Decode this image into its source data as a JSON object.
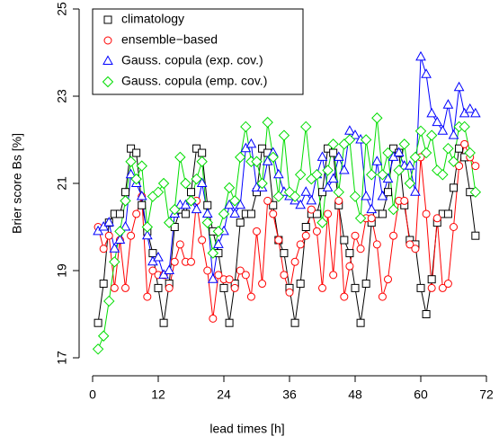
{
  "chart_data": {
    "type": "line",
    "x_label": "lead times [h]",
    "y_label": "Brier score Bs [%]",
    "x": [
      1,
      2,
      3,
      4,
      5,
      6,
      7,
      8,
      9,
      10,
      11,
      12,
      13,
      14,
      15,
      16,
      17,
      18,
      19,
      20,
      21,
      22,
      23,
      24,
      25,
      26,
      27,
      28,
      29,
      30,
      31,
      32,
      33,
      34,
      35,
      36,
      37,
      38,
      39,
      40,
      41,
      42,
      43,
      44,
      45,
      46,
      47,
      48,
      49,
      50,
      51,
      52,
      53,
      54,
      55,
      56,
      57,
      58,
      59,
      60,
      61,
      62,
      63,
      64,
      65,
      66,
      67,
      68,
      69,
      70
    ],
    "xlim": [
      0,
      72
    ],
    "xticks": [
      0,
      12,
      24,
      36,
      48,
      60,
      72
    ],
    "ylim": [
      17,
      25
    ],
    "yticks": [
      17,
      19,
      21,
      23,
      25
    ],
    "legend": "topleft",
    "series": [
      {
        "name": "climatology",
        "color": "#000000",
        "marker": "square",
        "values": [
          17.8,
          18.7,
          20.1,
          20.3,
          20.3,
          20.8,
          21.8,
          21.7,
          20.5,
          19.9,
          19.4,
          18.6,
          17.8,
          18.7,
          20.0,
          20.4,
          20.3,
          20.8,
          21.8,
          21.7,
          20.5,
          19.9,
          19.4,
          18.6,
          17.8,
          18.7,
          20.1,
          20.3,
          20.3,
          20.8,
          21.8,
          21.7,
          20.5,
          19.7,
          19.4,
          18.6,
          17.8,
          18.7,
          20.0,
          20.3,
          20.3,
          20.8,
          21.8,
          21.7,
          20.5,
          19.7,
          19.4,
          18.6,
          17.8,
          18.7,
          20.1,
          20.3,
          20.3,
          20.8,
          21.8,
          21.7,
          20.5,
          19.7,
          19.6,
          18.6,
          18.0,
          18.8,
          20.1,
          20.3,
          20.3,
          20.9,
          21.8,
          21.6,
          20.8,
          19.8
        ]
      },
      {
        "name": "ensemble−based",
        "color": "#ff0000",
        "marker": "circle",
        "values": [
          20.0,
          19.5,
          19.8,
          18.6,
          19.7,
          18.6,
          19.8,
          20.3,
          20.7,
          18.4,
          19.0,
          18.9,
          18.9,
          18.6,
          19.2,
          19.6,
          19.2,
          19.2,
          20.6,
          19.7,
          19.0,
          17.9,
          18.9,
          18.8,
          18.8,
          18.6,
          19.0,
          18.9,
          18.4,
          19.9,
          18.7,
          20.6,
          20.3,
          19.7,
          18.9,
          18.5,
          19.2,
          19.6,
          19.8,
          20.4,
          19.9,
          18.6,
          20.3,
          18.9,
          20.6,
          18.4,
          19.1,
          19.8,
          19.5,
          20.2,
          20.2,
          19.6,
          18.4,
          18.8,
          19.8,
          20.6,
          20.6,
          19.6,
          19.5,
          21.6,
          20.3,
          18.6,
          20.2,
          18.6,
          18.7,
          20.0,
          21.4,
          21.9,
          21.6,
          21.4
        ]
      },
      {
        "name": "Gauss. copula (exp. cov.)",
        "color": "#0000ff",
        "marker": "triangle",
        "values": [
          19.9,
          20.0,
          20.1,
          19.5,
          19.7,
          20.0,
          21.2,
          21.0,
          20.7,
          19.8,
          19.2,
          19.3,
          18.9,
          19.0,
          20.3,
          20.5,
          20.5,
          20.6,
          20.4,
          21.0,
          20.3,
          18.8,
          19.6,
          19.9,
          20.5,
          20.3,
          20.5,
          21.8,
          21.9,
          20.9,
          20.9,
          21.5,
          21.7,
          21.2,
          20.8,
          20.7,
          20.6,
          20.5,
          20.8,
          20.6,
          21.2,
          21.6,
          20.9,
          21.1,
          21.6,
          21.3,
          22.2,
          22.1,
          22.0,
          20.7,
          20.4,
          21.5,
          20.7,
          21.1,
          21.6,
          21.7,
          21.4,
          21.4,
          20.8,
          23.9,
          23.5,
          22.6,
          22.4,
          22.2,
          22.8,
          22.1,
          23.2,
          22.6,
          22.7,
          22.6
        ]
      },
      {
        "name": "Gauss. copula (emp. cov.)",
        "color": "#00dd00",
        "marker": "diamond",
        "values": [
          17.2,
          17.5,
          18.3,
          19.2,
          19.9,
          20.6,
          21.5,
          21.1,
          21.4,
          20.0,
          20.7,
          20.8,
          21.0,
          20.1,
          20.4,
          21.6,
          21.0,
          20.6,
          21.1,
          21.5,
          20.1,
          19.4,
          19.9,
          20.3,
          20.9,
          20.6,
          21.6,
          22.3,
          21.5,
          21.5,
          21.0,
          22.4,
          21.6,
          20.7,
          22.1,
          20.8,
          20.7,
          21.2,
          22.3,
          21.1,
          21.2,
          20.1,
          21.3,
          21.9,
          20.8,
          21.9,
          22.0,
          20.7,
          20.2,
          22.0,
          21.2,
          22.5,
          21.2,
          21.7,
          20.4,
          21.3,
          21.9,
          21.0,
          21.6,
          22.2,
          21.7,
          22.1,
          21.3,
          21.2,
          21.8,
          21.5,
          22.3,
          22.3,
          21.7,
          20.8
        ]
      }
    ]
  }
}
